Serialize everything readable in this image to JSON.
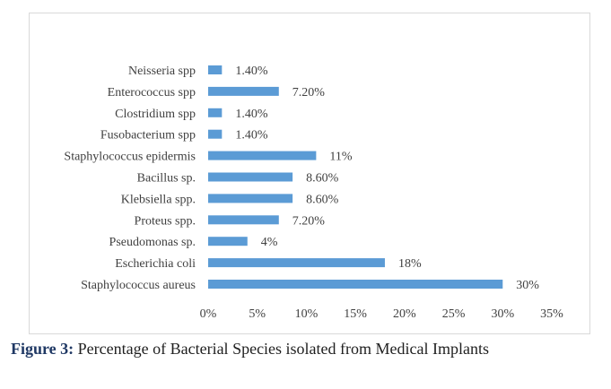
{
  "chart_data": {
    "type": "bar",
    "orientation": "horizontal",
    "categories": [
      "Neisseria spp",
      "Enterococcus spp",
      "Clostridium spp",
      "Fusobacterium spp",
      "Staphylococcus  epidermis",
      "Bacillus sp.",
      "Klebsiella spp.",
      "Proteus  spp.",
      "Pseudomonas sp.",
      "Escherichia coli",
      "Staphylococcus aureus"
    ],
    "values": [
      1.4,
      7.2,
      1.4,
      1.4,
      11,
      8.6,
      8.6,
      7.2,
      4,
      18,
      30
    ],
    "value_labels": [
      "1.40%",
      "7.20%",
      "1.40%",
      "1.40%",
      "11%",
      "8.60%",
      "8.60%",
      "7.20%",
      "4%",
      "18%",
      "30%"
    ],
    "xticks": [
      "0%",
      "5%",
      "10%",
      "15%",
      "20%",
      "25%",
      "30%",
      "35%"
    ],
    "xlim": [
      0,
      35
    ],
    "grid": false,
    "bar_color": "#5b9bd5"
  },
  "caption": {
    "label": "Figure 3:",
    "text": " Percentage of Bacterial Species isolated from Medical Implants"
  }
}
